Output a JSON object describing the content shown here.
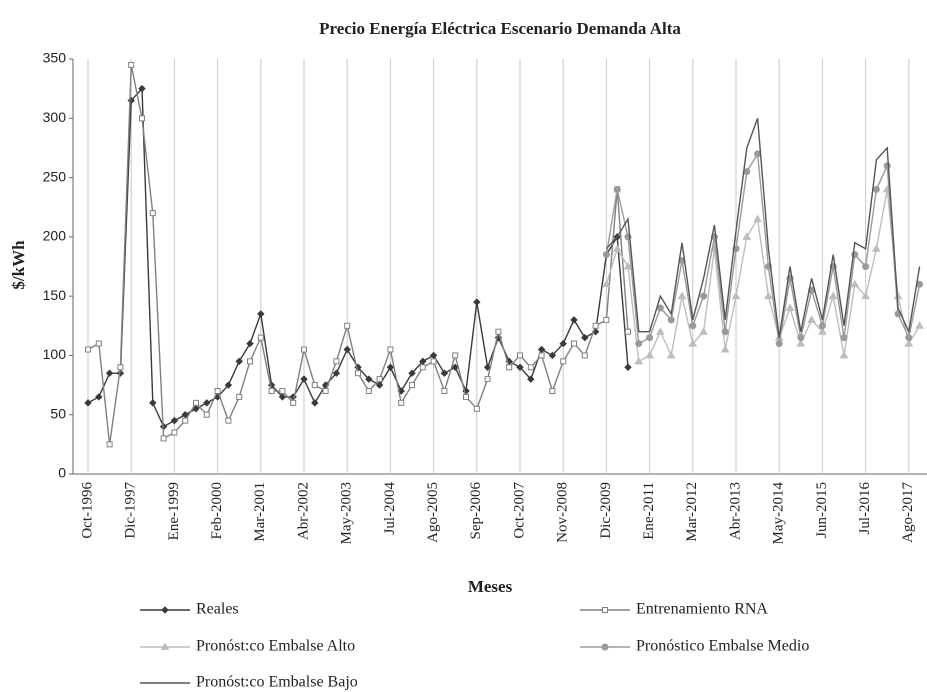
{
  "chart_data": {
    "type": "line",
    "title": "Precio Energía Eléctrica Escenario Demanda Alta",
    "x_label": "Meses",
    "y_label": "$/kWh",
    "categories": [
      "Oct-1996",
      null,
      null,
      null,
      "Dic-1997",
      null,
      null,
      null,
      "Ene-1999",
      null,
      null,
      null,
      "Feb-2000",
      null,
      null,
      null,
      "Mar-2001",
      null,
      null,
      null,
      "Abr-2002",
      null,
      null,
      null,
      "May-2003",
      null,
      null,
      null,
      "Jul-2004",
      null,
      null,
      null,
      "Ago-2005",
      null,
      null,
      null,
      "Sep-2006",
      null,
      null,
      null,
      "Oct-2007",
      null,
      null,
      null,
      "Nov-2008",
      null,
      null,
      null,
      "Dic-2009",
      null,
      null,
      null,
      "Ene-2011",
      null,
      null,
      null,
      "Mar-2012",
      null,
      null,
      null,
      "Abr-2013",
      null,
      null,
      null,
      "May-2014",
      null,
      null,
      null,
      "Jun-2015",
      null,
      null,
      null,
      "Jul-2016",
      null,
      null,
      null,
      "Ago-2017",
      null
    ],
    "ylim": [
      0,
      350
    ],
    "yticks": [
      0,
      50,
      100,
      150,
      200,
      250,
      300,
      350
    ],
    "grid": "x",
    "series": [
      {
        "name": "Reales",
        "color": "#3a3a3a",
        "marker": "diamond",
        "values": [
          60,
          65,
          85,
          85,
          315,
          325,
          60,
          40,
          45,
          50,
          55,
          60,
          65,
          75,
          95,
          110,
          135,
          75,
          65,
          65,
          80,
          60,
          75,
          85,
          105,
          90,
          80,
          75,
          90,
          70,
          85,
          95,
          100,
          85,
          90,
          70,
          145,
          90,
          115,
          95,
          90,
          80,
          105,
          100,
          110,
          130,
          115,
          120,
          185,
          200,
          90,
          null,
          null,
          null,
          null,
          null,
          null,
          null,
          null,
          null,
          null,
          null,
          null,
          null,
          null,
          null,
          null,
          null,
          null,
          null,
          null,
          null,
          null,
          null,
          null,
          null,
          null,
          null
        ]
      },
      {
        "name": "Entrenamiento RNA",
        "color": "#808080",
        "marker": "square",
        "values": [
          105,
          110,
          25,
          90,
          345,
          300,
          220,
          30,
          35,
          45,
          60,
          50,
          70,
          45,
          65,
          95,
          115,
          70,
          70,
          60,
          105,
          75,
          70,
          95,
          125,
          85,
          70,
          80,
          105,
          60,
          75,
          90,
          95,
          70,
          100,
          65,
          55,
          80,
          120,
          90,
          100,
          90,
          100,
          70,
          95,
          110,
          100,
          125,
          130,
          240,
          120,
          null,
          null,
          null,
          null,
          null,
          null,
          null,
          null,
          null,
          null,
          null,
          null,
          null,
          null,
          null,
          null,
          null,
          null,
          null,
          null,
          null,
          null,
          null,
          null,
          null,
          null,
          null
        ]
      },
      {
        "name": "Pronóst:co Embalse Alto",
        "color": "#bdbdbd",
        "marker": "triangle",
        "values": [
          null,
          null,
          null,
          null,
          null,
          null,
          null,
          null,
          null,
          null,
          null,
          null,
          null,
          null,
          null,
          null,
          null,
          null,
          null,
          null,
          null,
          null,
          null,
          null,
          null,
          null,
          null,
          null,
          null,
          null,
          null,
          null,
          null,
          null,
          null,
          null,
          null,
          null,
          null,
          null,
          null,
          null,
          null,
          null,
          null,
          null,
          null,
          null,
          160,
          190,
          175,
          95,
          100,
          120,
          100,
          150,
          110,
          120,
          190,
          105,
          150,
          200,
          215,
          150,
          115,
          140,
          110,
          130,
          120,
          150,
          100,
          160,
          150,
          190,
          240,
          150,
          110,
          125
        ]
      },
      {
        "name": "Pronóstico Embalse Medio",
        "color": "#9a9a9a",
        "marker": "circle",
        "values": [
          null,
          null,
          null,
          null,
          null,
          null,
          null,
          null,
          null,
          null,
          null,
          null,
          null,
          null,
          null,
          null,
          null,
          null,
          null,
          null,
          null,
          null,
          null,
          null,
          null,
          null,
          null,
          null,
          null,
          null,
          null,
          null,
          null,
          null,
          null,
          null,
          null,
          null,
          null,
          null,
          null,
          null,
          null,
          null,
          null,
          null,
          null,
          null,
          185,
          240,
          200,
          110,
          115,
          140,
          130,
          180,
          125,
          150,
          200,
          120,
          190,
          255,
          270,
          175,
          110,
          165,
          115,
          155,
          125,
          175,
          115,
          185,
          175,
          240,
          260,
          135,
          115,
          160
        ]
      },
      {
        "name": "Pronóst:co Embalse Bajo",
        "color": "#555555",
        "marker": "none",
        "values": [
          null,
          null,
          null,
          null,
          null,
          null,
          null,
          null,
          null,
          null,
          null,
          null,
          null,
          null,
          null,
          null,
          null,
          null,
          null,
          null,
          null,
          null,
          null,
          null,
          null,
          null,
          null,
          null,
          null,
          null,
          null,
          null,
          null,
          null,
          null,
          null,
          null,
          null,
          null,
          null,
          null,
          null,
          null,
          null,
          null,
          null,
          null,
          null,
          190,
          200,
          215,
          120,
          120,
          150,
          135,
          195,
          130,
          165,
          210,
          130,
          205,
          275,
          300,
          190,
          115,
          175,
          120,
          165,
          130,
          185,
          125,
          195,
          190,
          265,
          275,
          140,
          120,
          175
        ]
      }
    ]
  }
}
